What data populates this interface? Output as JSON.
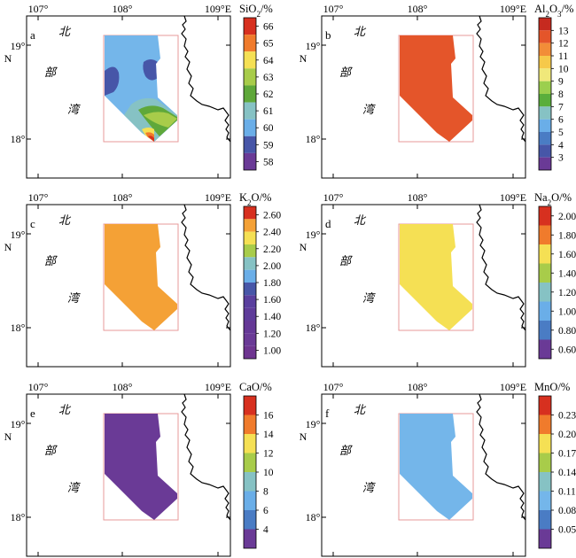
{
  "figure": {
    "lon_labels": [
      "107°",
      "108°",
      "109°E"
    ],
    "lat_labels": [
      "19°",
      "N",
      "18°"
    ],
    "place_names": [
      "北",
      "部",
      "湾"
    ]
  },
  "chart_data": [
    {
      "type": "heatmap",
      "panel_label": "a",
      "colorbar_title": "SiO2/%",
      "colorbar_title_parts": {
        "base": "SiO",
        "sub": "2",
        "suffix": "/%"
      },
      "colorbar_ticks": [
        "66",
        "65",
        "64",
        "63",
        "62",
        "61",
        "60",
        "59",
        "58"
      ],
      "colors": [
        "#d7301f",
        "#f07b2c",
        "#f5e054",
        "#a8cc4a",
        "#5fa83a",
        "#86c2c4",
        "#6aaee8",
        "#4756a8",
        "#6a3a96"
      ],
      "background_color": "#74b6ea"
    },
    {
      "type": "heatmap",
      "panel_label": "b",
      "colorbar_title": "Al2O3/%",
      "colorbar_title_parts": {
        "base": "Al",
        "sub": "2",
        "base2": "O",
        "sub2": "3",
        "suffix": "/%"
      },
      "colorbar_ticks": [
        "13",
        "12",
        "11",
        "10",
        "9",
        "8",
        "7",
        "6",
        "5",
        "4",
        "3"
      ],
      "colors": [
        "#c62a1f",
        "#e4552a",
        "#f28d38",
        "#f6c94a",
        "#f0e87a",
        "#9ccf4e",
        "#5aae3c",
        "#86c2c4",
        "#6aaee8",
        "#4a7cc4",
        "#4756a8",
        "#6a3a96"
      ],
      "background_color": "#e4552a"
    },
    {
      "type": "heatmap",
      "panel_label": "c",
      "colorbar_title": "K2O/%",
      "colorbar_title_parts": {
        "base": "K",
        "sub": "2",
        "base2": "O",
        "suffix": "/%"
      },
      "colorbar_ticks": [
        "2.60",
        "2.40",
        "2.20",
        "2.00",
        "1.80",
        "1.60",
        "1.40",
        "1.20",
        "1.00"
      ],
      "colors": [
        "#d7301f",
        "#f4a136",
        "#f5e054",
        "#a8cc4a",
        "#86c2c4",
        "#6aaee8",
        "#4756a8",
        "#5a3f9e",
        "#5f3c9a",
        "#653896",
        "#6a3a96",
        "#6e3590"
      ],
      "background_color": "#f4a136"
    },
    {
      "type": "heatmap",
      "panel_label": "d",
      "colorbar_title": "Na2O/%",
      "colorbar_title_parts": {
        "base": "Na",
        "sub": "2",
        "base2": "O",
        "suffix": "/%"
      },
      "colorbar_ticks": [
        "2.00",
        "1.80",
        "1.60",
        "1.40",
        "1.20",
        "1.00",
        "0.80",
        "0.60"
      ],
      "colors": [
        "#d7301f",
        "#f07b2c",
        "#f5e054",
        "#a8cc4a",
        "#86c2c4",
        "#6aaee8",
        "#4a7cc4",
        "#6a3a96"
      ],
      "background_color": "#f5e054"
    },
    {
      "type": "heatmap",
      "panel_label": "e",
      "colorbar_title": "CaO/%",
      "colorbar_title_parts": {
        "base": "CaO",
        "suffix": "/%"
      },
      "colorbar_ticks": [
        "16",
        "14",
        "12",
        "10",
        "8",
        "6",
        "4"
      ],
      "colors": [
        "#d7301f",
        "#f07b2c",
        "#f5e054",
        "#a8cc4a",
        "#86c2c4",
        "#6aaee8",
        "#4a7cc4",
        "#6a3a96"
      ],
      "background_color": "#6a3a96"
    },
    {
      "type": "heatmap",
      "panel_label": "f",
      "colorbar_title": "MnO/%",
      "colorbar_title_parts": {
        "base": "MnO",
        "suffix": "/%"
      },
      "colorbar_ticks": [
        "0.23",
        "0.20",
        "0.17",
        "0.14",
        "0.11",
        "0.08",
        "0.05"
      ],
      "colors": [
        "#d7301f",
        "#f07b2c",
        "#f5e054",
        "#a8cc4a",
        "#86c2c4",
        "#74b6ea",
        "#4a7cc4",
        "#6a3a96"
      ],
      "background_color": "#74b6ea"
    }
  ]
}
